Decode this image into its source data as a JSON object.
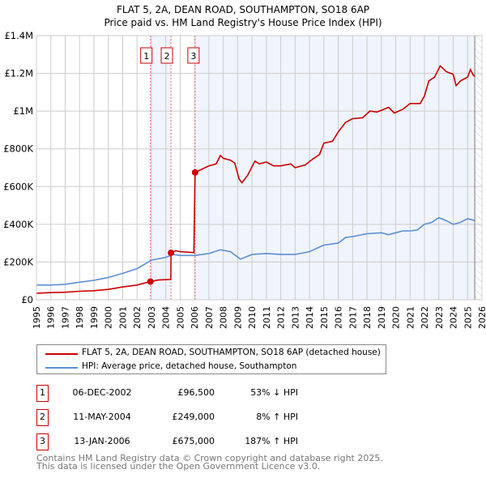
{
  "title": "FLAT 5, 2A, DEAN ROAD, SOUTHAMPTON, SO18 6AP",
  "subtitle": "Price paid vs. HM Land Registry's House Price Index (HPI)",
  "colors": {
    "property": "#cc0000",
    "hpi": "#5b8fd4",
    "shade": "#f0f4fc"
  },
  "chart_data": {
    "type": "line",
    "title": "FLAT 5, 2A, DEAN ROAD, SOUTHAMPTON, SO18 6AP",
    "subtitle": "Price paid vs. HM Land Registry's House Price Index (HPI)",
    "xlim": [
      1995,
      2026
    ],
    "ylim": [
      0,
      1400000
    ],
    "grid": true,
    "y_ticks": [
      {
        "v": 0,
        "label": "£0"
      },
      {
        "v": 200000,
        "label": "£200K"
      },
      {
        "v": 400000,
        "label": "£400K"
      },
      {
        "v": 600000,
        "label": "£600K"
      },
      {
        "v": 800000,
        "label": "£800K"
      },
      {
        "v": 1000000,
        "label": "£1M"
      },
      {
        "v": 1200000,
        "label": "£1.2M"
      },
      {
        "v": 1400000,
        "label": "£1.4M"
      }
    ],
    "x_ticks": [
      "1995",
      "1996",
      "1997",
      "1998",
      "1999",
      "2000",
      "2001",
      "2002",
      "2003",
      "2004",
      "2005",
      "2006",
      "2007",
      "2008",
      "2009",
      "2010",
      "2011",
      "2012",
      "2013",
      "2014",
      "2015",
      "2016",
      "2017",
      "2018",
      "2019",
      "2020",
      "2021",
      "2022",
      "2023",
      "2024",
      "2025",
      "2026"
    ],
    "data_end": 2025.5,
    "series": [
      {
        "name": "FLAT 5, 2A, DEAN ROAD, SOUTHAMPTON, SO18 6AP (detached house)",
        "x": [
          1995,
          1996,
          1997,
          1998,
          1999,
          2000,
          2001,
          2002,
          2002.93,
          2003.5,
          2004.35,
          2004.36,
          2004.7,
          2005,
          2005.95,
          2006.04,
          2007,
          2007.5,
          2007.8,
          2008,
          2008.5,
          2008.8,
          2009.1,
          2009.3,
          2009.7,
          2010.2,
          2010.5,
          2011,
          2011.5,
          2012,
          2012.7,
          2013,
          2013.7,
          2014.3,
          2014.7,
          2015,
          2015.6,
          2016,
          2016.5,
          2017,
          2017.7,
          2018.2,
          2018.7,
          2019.5,
          2019.9,
          2020.5,
          2021,
          2021.7,
          2022,
          2022.3,
          2022.7,
          2023.1,
          2023.5,
          2024,
          2024.2,
          2024.5,
          2025,
          2025.2,
          2025.4,
          2025.5
        ],
        "y": [
          35000,
          38000,
          40000,
          45000,
          48000,
          55000,
          68000,
          78000,
          96500,
          105000,
          108000,
          249000,
          260000,
          255000,
          250000,
          675000,
          710000,
          720000,
          765000,
          750000,
          740000,
          725000,
          640000,
          620000,
          660000,
          735000,
          720000,
          730000,
          710000,
          710000,
          720000,
          700000,
          715000,
          750000,
          770000,
          830000,
          840000,
          890000,
          940000,
          960000,
          965000,
          1000000,
          995000,
          1020000,
          990000,
          1010000,
          1040000,
          1040000,
          1080000,
          1160000,
          1180000,
          1240000,
          1210000,
          1195000,
          1135000,
          1160000,
          1180000,
          1220000,
          1190000,
          1185000
        ]
      },
      {
        "name": "HPI: Average price, detached house, Southampton",
        "x": [
          1995,
          1996,
          1997,
          1998,
          1999,
          2000,
          2001,
          2002,
          2003,
          2004,
          2004.5,
          2005,
          2006,
          2007,
          2007.8,
          2008.5,
          2009.2,
          2010,
          2011,
          2012,
          2013,
          2014,
          2015,
          2016,
          2016.5,
          2017,
          2018,
          2019,
          2019.5,
          2020,
          2020.5,
          2021,
          2021.5,
          2022,
          2022.5,
          2023,
          2023.5,
          2024,
          2024.5,
          2025,
          2025.5
        ],
        "y": [
          78000,
          78000,
          82000,
          93000,
          103000,
          118000,
          140000,
          165000,
          210000,
          225000,
          240000,
          235000,
          235000,
          245000,
          265000,
          255000,
          215000,
          240000,
          245000,
          240000,
          240000,
          255000,
          290000,
          300000,
          330000,
          335000,
          350000,
          355000,
          345000,
          355000,
          365000,
          365000,
          370000,
          400000,
          410000,
          435000,
          420000,
          400000,
          410000,
          430000,
          420000
        ]
      }
    ],
    "sales": [
      {
        "n": "1",
        "x": 2002.93,
        "y": 96500
      },
      {
        "n": "2",
        "x": 2004.36,
        "y": 249000
      },
      {
        "n": "3",
        "x": 2006.04,
        "y": 675000
      }
    ]
  },
  "legend": {
    "property": "FLAT 5, 2A, DEAN ROAD, SOUTHAMPTON, SO18 6AP (detached house)",
    "hpi": "HPI: Average price, detached house, Southampton"
  },
  "transactions": [
    {
      "n": "1",
      "date": "06-DEC-2002",
      "price": "£96,500",
      "hpi": "53% ↓ HPI"
    },
    {
      "n": "2",
      "date": "11-MAY-2004",
      "price": "£249,000",
      "hpi": "8% ↑ HPI"
    },
    {
      "n": "3",
      "date": "13-JAN-2006",
      "price": "£675,000",
      "hpi": "187% ↑ HPI"
    }
  ],
  "footer": {
    "line1": "Contains HM Land Registry data © Crown copyright and database right 2025.",
    "line2": "This data is licensed under the Open Government Licence v3.0."
  }
}
